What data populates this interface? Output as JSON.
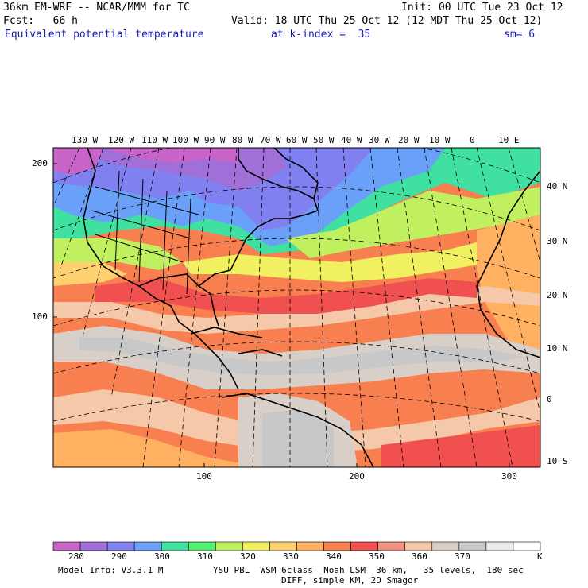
{
  "header": {
    "model": "36km EM-WRF -- NCAR/MMM for TC",
    "init": "Init: 00 UTC Tue 23 Oct 12",
    "fcst": "Fcst:   66 h",
    "valid": "Valid: 18 UTC Thu 25 Oct 12 (12 MDT Thu 25 Oct 12)",
    "field": "Equivalent potential temperature",
    "level": "at k-index =  35",
    "smooth": "sm= 6"
  },
  "map": {
    "lon_labels": [
      "130 W",
      "120 W",
      "110 W",
      "100 W",
      "90 W",
      "80 W",
      "70 W",
      "60 W",
      "50 W",
      "40 W",
      "30 W",
      "20 W",
      "10 W",
      "0",
      "10 E"
    ],
    "lat_labels": [
      "40 N",
      "30 N",
      "20 N",
      "10 N",
      "0",
      "10 S"
    ],
    "x_ticks": [
      "100",
      "200",
      "300"
    ],
    "y_ticks": [
      "200",
      "100"
    ]
  },
  "colorbar": {
    "labels": [
      "280",
      "290",
      "300",
      "310",
      "320",
      "330",
      "340",
      "350",
      "360",
      "370"
    ],
    "unit": "K",
    "colors": [
      "#c864c8",
      "#a070d8",
      "#8080f0",
      "#6aa0f8",
      "#40e0a0",
      "#50f070",
      "#c0f060",
      "#f0f060",
      "#ffd070",
      "#ffb060",
      "#f88050",
      "#f05050",
      "#f09080",
      "#f4c8a8",
      "#d8d0c8",
      "#c8c8c8",
      "#ececec",
      "#ffffff"
    ]
  },
  "footer": {
    "model_info": "Model Info: V3.3.1 M",
    "physics": "YSU PBL  WSM 6class  Noah LSM  36 km,   35 levels,  180 sec",
    "diff": "DIFF, simple KM, 2D Smagor"
  }
}
